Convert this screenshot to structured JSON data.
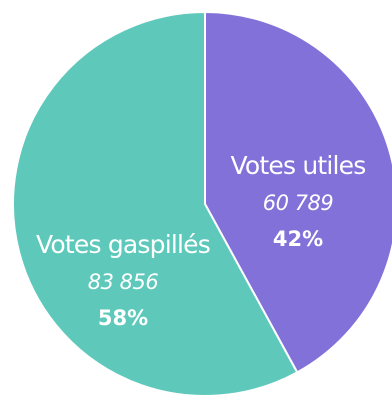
{
  "chart_data": {
    "type": "pie",
    "title": "",
    "slices": [
      {
        "label": "Votes utiles",
        "value": 60789,
        "value_text": "60 789",
        "percent_text": "42%",
        "color": "#8171d9"
      },
      {
        "label": "Votes gaspillés",
        "value": 83856,
        "value_text": "83 856",
        "percent_text": "58%",
        "color": "#5ec9bb"
      }
    ],
    "start_angle_deg": 0,
    "direction": "clockwise",
    "border_color": "#ffffff",
    "legend": "none"
  }
}
